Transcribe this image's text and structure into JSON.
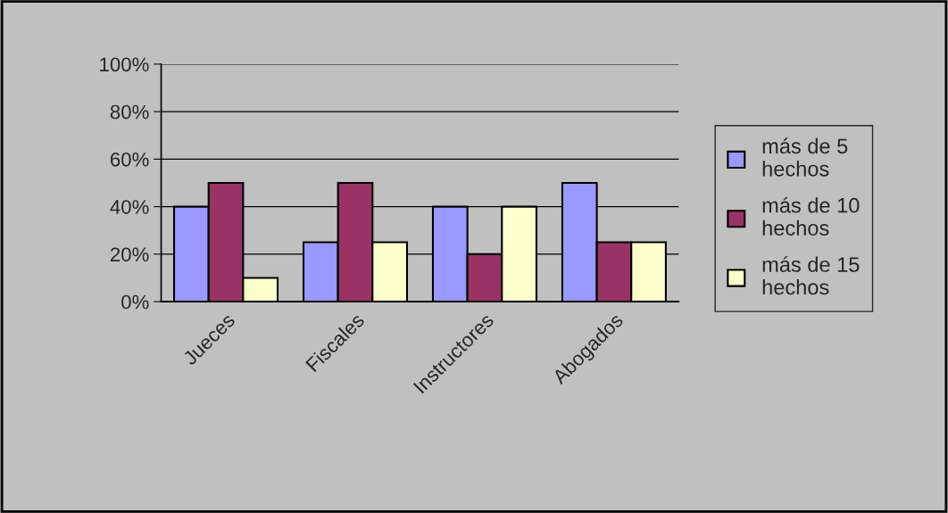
{
  "chart_data": {
    "type": "bar",
    "categories": [
      "Jueces",
      "Fiscales",
      "Instructores",
      "Abogados"
    ],
    "series": [
      {
        "name": "más de 5 hechos",
        "color": "#9999ff",
        "values": [
          40,
          25,
          40,
          50
        ]
      },
      {
        "name": "más de 10 hechos",
        "color": "#993366",
        "values": [
          50,
          50,
          20,
          25
        ]
      },
      {
        "name": "más de 15 hechos",
        "color": "#ffffcc",
        "values": [
          10,
          25,
          40,
          25
        ]
      }
    ],
    "ylim": [
      0,
      100
    ],
    "yticks": [
      {
        "value": 0,
        "label": "0%"
      },
      {
        "value": 20,
        "label": "20%"
      },
      {
        "value": 40,
        "label": "40%"
      },
      {
        "value": 60,
        "label": "60%"
      },
      {
        "value": 80,
        "label": "80%"
      },
      {
        "value": 100,
        "label": "100%"
      }
    ],
    "grid": "y",
    "legend": "right"
  }
}
